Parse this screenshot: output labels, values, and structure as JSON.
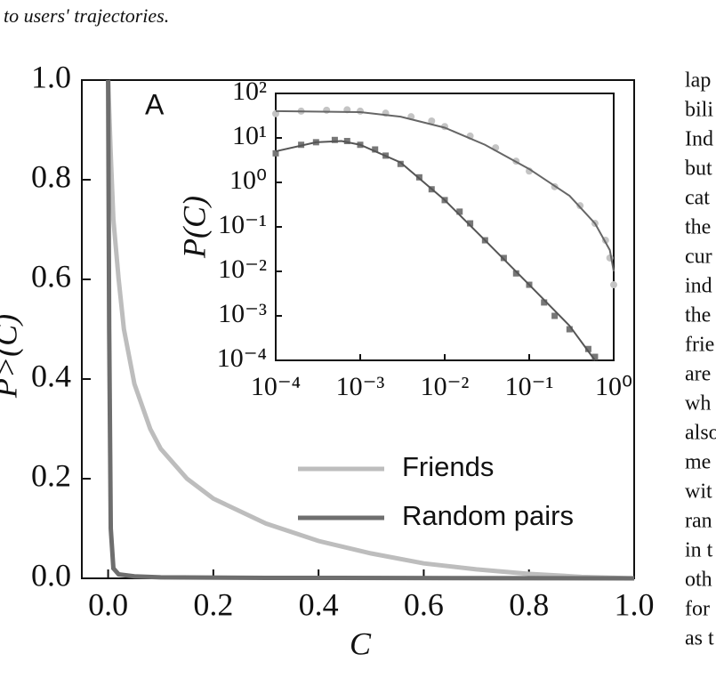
{
  "text": {
    "top": "to users' trajectories.",
    "right_column": [
      "lap",
      "bili",
      "Ind",
      "but",
      "cat",
      "the",
      "cur",
      "ind",
      "the",
      "frie",
      "are",
      "wh",
      "also",
      "me",
      "wit",
      "ran",
      "in t",
      "oth",
      "for",
      "as t"
    ]
  },
  "chart_data": [
    {
      "type": "line",
      "annotation": "A",
      "xlabel": "C",
      "ylabel": "P>(C)",
      "xlim": [
        -0.05,
        1.0
      ],
      "ylim": [
        0,
        1.0
      ],
      "xticks": [
        {
          "value": 0,
          "label": "0.0"
        },
        {
          "value": 0.2,
          "label": "0.2"
        },
        {
          "value": 0.4,
          "label": "0.4"
        },
        {
          "value": 0.6,
          "label": "0.6"
        },
        {
          "value": 0.8,
          "label": "0.8"
        },
        {
          "value": 1.0,
          "label": "1.0"
        }
      ],
      "yticks": [
        {
          "value": 0,
          "label": "0.0"
        },
        {
          "value": 0.2,
          "label": "0.2"
        },
        {
          "value": 0.4,
          "label": "0.4"
        },
        {
          "value": 0.6,
          "label": "0.6"
        },
        {
          "value": 0.8,
          "label": "0.8"
        },
        {
          "value": 1.0,
          "label": "1.0"
        }
      ],
      "series": [
        {
          "name": "Friends",
          "color": "#bdbdbd",
          "x": [
            0,
            0.005,
            0.01,
            0.02,
            0.03,
            0.05,
            0.08,
            0.1,
            0.15,
            0.2,
            0.3,
            0.4,
            0.5,
            0.6,
            0.7,
            0.8,
            0.9,
            1.0
          ],
          "values": [
            1.0,
            0.85,
            0.72,
            0.6,
            0.5,
            0.39,
            0.3,
            0.26,
            0.2,
            0.16,
            0.11,
            0.075,
            0.05,
            0.03,
            0.018,
            0.009,
            0.003,
            0
          ]
        },
        {
          "name": "Random pairs",
          "color": "#6e6e6e",
          "x": [
            0,
            0.002,
            0.005,
            0.01,
            0.02,
            0.05,
            0.1,
            0.3,
            1.0
          ],
          "values": [
            1.0,
            0.5,
            0.1,
            0.02,
            0.008,
            0.004,
            0.002,
            0.001,
            0
          ]
        }
      ]
    },
    {
      "type": "scatter",
      "ylabel": "P(C)",
      "xlog": true,
      "ylog": true,
      "xlim": [
        0.0001,
        1
      ],
      "ylim": [
        0.0001,
        100
      ],
      "xticks": [
        {
          "value": 0.0001,
          "label": "10⁻⁴"
        },
        {
          "value": 0.001,
          "label": "10⁻³"
        },
        {
          "value": 0.01,
          "label": "10⁻²"
        },
        {
          "value": 0.1,
          "label": "10⁻¹"
        },
        {
          "value": 1,
          "label": "10⁰"
        }
      ],
      "yticks": [
        {
          "value": 0.0001,
          "label": "10⁻⁴"
        },
        {
          "value": 0.001,
          "label": "10⁻³"
        },
        {
          "value": 0.01,
          "label": "10⁻²"
        },
        {
          "value": 0.1,
          "label": "10⁻¹"
        },
        {
          "value": 1,
          "label": "10⁰"
        },
        {
          "value": 10,
          "label": "10¹"
        },
        {
          "value": 100,
          "label": "10²"
        }
      ],
      "series": [
        {
          "marker": "circle",
          "color": "#c4c4c4",
          "x": [
            0.0001,
            0.0002,
            0.0004,
            0.0007,
            0.001,
            0.002,
            0.004,
            0.007,
            0.01,
            0.02,
            0.04,
            0.07,
            0.1,
            0.2,
            0.4,
            0.6,
            0.8,
            0.9,
            1.0
          ],
          "values": [
            35,
            40,
            42,
            43,
            40,
            36,
            30,
            24,
            18,
            11,
            6,
            3,
            1.8,
            0.8,
            0.3,
            0.12,
            0.05,
            0.02,
            0.005
          ]
        },
        {
          "marker": "square",
          "color": "#777777",
          "x": [
            0.0001,
            0.0002,
            0.0003,
            0.0005,
            0.0007,
            0.001,
            0.0015,
            0.002,
            0.003,
            0.005,
            0.007,
            0.01,
            0.015,
            0.02,
            0.03,
            0.05,
            0.07,
            0.1,
            0.15,
            0.2,
            0.3,
            0.5,
            0.6
          ],
          "values": [
            4.5,
            7,
            8,
            9,
            8.5,
            7,
            5.5,
            4,
            2.6,
            1.3,
            0.7,
            0.4,
            0.22,
            0.12,
            0.05,
            0.02,
            0.009,
            0.005,
            0.002,
            0.001,
            0.0005,
            0.00018,
            0.00012
          ]
        },
        {
          "marker": "none",
          "color": "#666666",
          "x": [
            0.0001,
            0.001,
            0.003,
            0.01,
            0.03,
            0.1,
            0.3,
            0.6,
            0.9,
            1.0
          ],
          "values": [
            40,
            38,
            30,
            17,
            7,
            2,
            0.5,
            0.12,
            0.03,
            0.01
          ]
        },
        {
          "marker": "none",
          "color": "#555555",
          "x": [
            0.0001,
            0.0003,
            0.0006,
            0.001,
            0.003,
            0.01,
            0.03,
            0.1,
            0.3,
            0.6
          ],
          "values": [
            5,
            8,
            8.5,
            7,
            2.8,
            0.4,
            0.05,
            0.005,
            0.0006,
            0.0001
          ]
        }
      ]
    }
  ]
}
